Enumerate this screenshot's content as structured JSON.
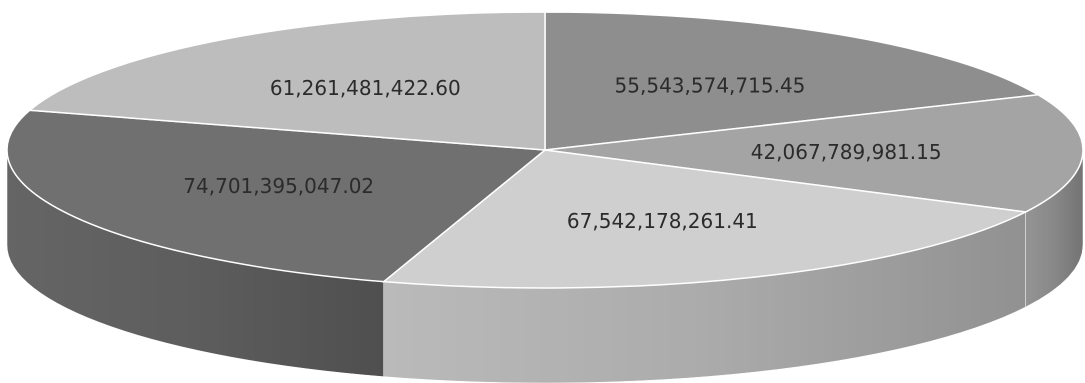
{
  "chart_data": {
    "type": "pie",
    "style": "3d",
    "title": "",
    "legend": "none",
    "slices": [
      {
        "label": "55,543,574,715.45",
        "value": 55543574715.45,
        "color": "#8e8e8e"
      },
      {
        "label": "42,067,789,981.15",
        "value": 42067789981.15,
        "color": "#a4a4a4"
      },
      {
        "label": "67,542,178,261.41",
        "value": 67542178261.41,
        "color": "#cfcfcf"
      },
      {
        "label": "74,701,395,047.02",
        "value": 74701395047.02,
        "color": "#707070"
      },
      {
        "label": "61,261,481,422.60",
        "value": 61261481422.6,
        "color": "#bdbdbd"
      }
    ]
  }
}
